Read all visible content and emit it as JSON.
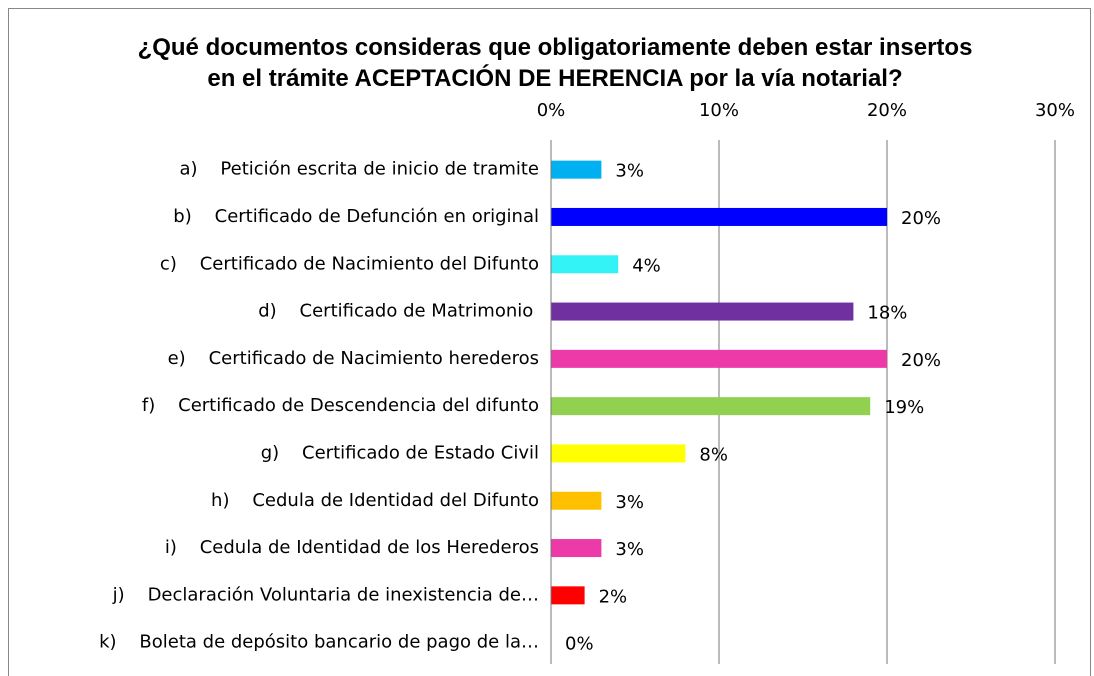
{
  "chart_data": {
    "type": "bar",
    "orientation": "horizontal",
    "title": "¿Qué documentos consideras que obligatoriamente deben estar insertos en el trámite ACEPTACIÓN DE HERENCIA por la vía notarial?",
    "categories": [
      "a)    Petición escrita de inicio de tramite",
      "b)    Certificado de Defunción en original",
      "c)    Certificado de Nacimiento del Difunto",
      "d)    Certificado de Matrimonio ",
      "e)    Certificado de Nacimiento herederos",
      "f)    Certificado de Descendencia del difunto",
      "g)    Certificado de Estado Civil",
      "h)    Cedula de Identidad del Difunto",
      "i)    Cedula de Identidad de los Herederos",
      "j)    Declaración Voluntaria de inexistencia de…",
      "k)    Boleta de depósito bancario de pago de la…"
    ],
    "values": [
      3,
      20,
      4,
      18,
      20,
      19,
      8,
      3,
      3,
      2,
      0
    ],
    "value_labels": [
      "3%",
      "20%",
      "4%",
      "18%",
      "20%",
      "19%",
      "8%",
      "3%",
      "3%",
      "2%",
      "0%"
    ],
    "colors": [
      "#00b0f0",
      "#0000ff",
      "#33f3f7",
      "#7030a0",
      "#ec3aa8",
      "#92d050",
      "#ffff00",
      "#ffc000",
      "#ec3aa8",
      "#ff0000",
      "#4472c4"
    ],
    "xlim": [
      0,
      30
    ],
    "xticks": [
      {
        "value": 0,
        "label": "0%"
      },
      {
        "value": 10,
        "label": "10%"
      },
      {
        "value": 20,
        "label": "20%"
      },
      {
        "value": 30,
        "label": "30%"
      }
    ],
    "grid": true
  }
}
